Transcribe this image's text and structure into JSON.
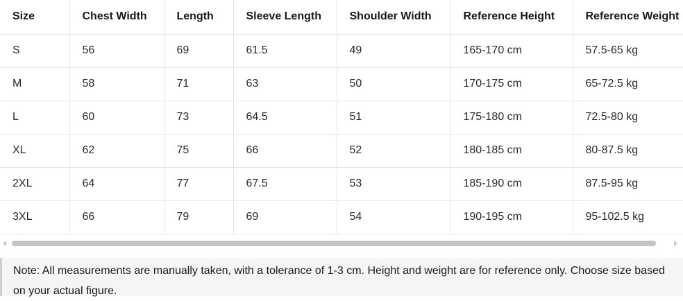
{
  "table": {
    "headers": [
      "Size",
      "Chest Width",
      "Length",
      "Sleeve Length",
      "Shoulder Width",
      "Reference Height",
      "Reference Weight"
    ],
    "rows": [
      [
        "S",
        "56",
        "69",
        "61.5",
        "49",
        "165-170 cm",
        "57.5-65 kg"
      ],
      [
        "M",
        "58",
        "71",
        "63",
        "50",
        "170-175 cm",
        "65-72.5 kg"
      ],
      [
        "L",
        "60",
        "73",
        "64.5",
        "51",
        "175-180 cm",
        "72.5-80 kg"
      ],
      [
        "XL",
        "62",
        "75",
        "66",
        "52",
        "180-185 cm",
        "80-87.5 kg"
      ],
      [
        "2XL",
        "64",
        "77",
        "67.5",
        "53",
        "185-190 cm",
        "87.5-95 kg"
      ],
      [
        "3XL",
        "66",
        "79",
        "69",
        "54",
        "190-195 cm",
        "95-102.5 kg"
      ]
    ]
  },
  "note": {
    "text": "Note: All measurements are manually taken, with a tolerance of 1-3 cm. Height and weight are for reference only. Choose size based on your actual figure."
  },
  "colors": {
    "border": "#e6e6e6",
    "note_background": "#f5f5f5",
    "note_border": "#d0d0d0",
    "scroll_thumb": "#c4c4c4"
  }
}
